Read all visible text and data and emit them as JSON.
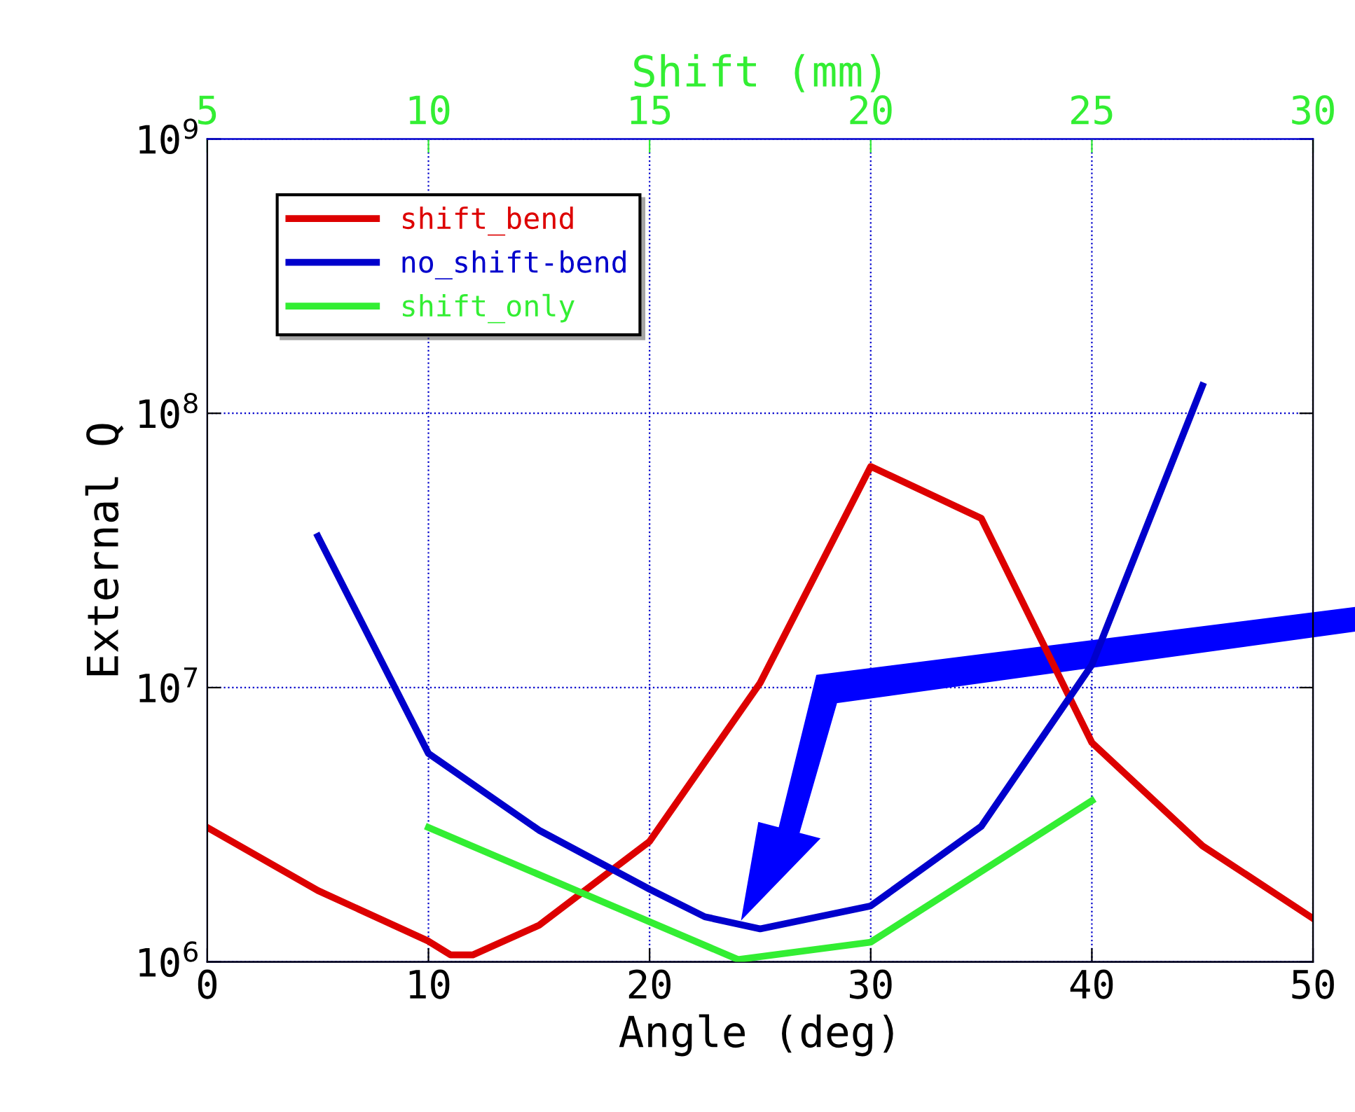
{
  "chart_data": {
    "type": "line",
    "xlabel": "Angle (deg)",
    "ylabel": "External Q",
    "x2label": "Shift (mm)",
    "xlim": [
      0,
      50
    ],
    "xticks": [
      0,
      10,
      20,
      30,
      40,
      50
    ],
    "x2lim": [
      5,
      30
    ],
    "x2ticks": [
      5,
      10,
      15,
      20,
      25,
      30
    ],
    "ylim": [
      1000000,
      1000000000
    ],
    "yticks": [
      {
        "value": 1000000,
        "label": "10$^{6}$"
      },
      {
        "value": 10000000,
        "label": "10$^{7}$"
      },
      {
        "value": 100000000,
        "label": "10$^{8}$"
      },
      {
        "value": 1000000000,
        "label": "10$^{9}$"
      }
    ],
    "log": "y",
    "grid": true,
    "legend": "top left",
    "marker": "none",
    "line_style": "solid",
    "series": [
      {
        "name": "shift_bend",
        "color": "#dd0000",
        "x": [
          0,
          5,
          10,
          11,
          12,
          15,
          20,
          25,
          30,
          35,
          40,
          45,
          50
        ],
        "values": [
          3090000,
          1820000,
          1190000,
          1060000,
          1060000,
          1360000,
          2750000,
          10400000,
          64000000,
          41400000,
          6300000,
          2650000,
          1440000
        ]
      },
      {
        "name": "no_shift-bend",
        "color": "#0000cc",
        "x": [
          5,
          10,
          15,
          20,
          22.5,
          25,
          30,
          35,
          40,
          45
        ],
        "values": [
          35600000,
          5750000,
          3020000,
          1840000,
          1460000,
          1320000,
          1600000,
          3120000,
          12100000,
          126000000
        ]
      },
      {
        "name": "shift_only",
        "color": "#33ee33",
        "axis": "x2",
        "x": [
          10,
          17,
          20,
          25
        ],
        "values": [
          3090000,
          1020000,
          1180000,
          3870000
        ]
      }
    ]
  }
}
